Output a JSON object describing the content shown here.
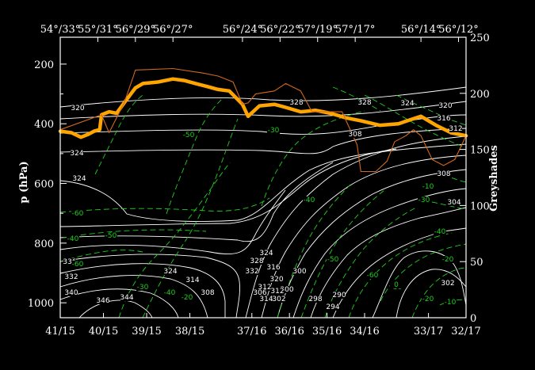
{
  "chart_data": {
    "type": "line",
    "title": "",
    "top_axis": {
      "labels": [
        "54°/33°",
        "55°/31°",
        "56°/29°",
        "56°/27°",
        "56°/24°",
        "56°/22°",
        "57°/19°",
        "57°/17°",
        "56°/14°",
        "56°/12°"
      ],
      "positions": [
        0,
        1.0,
        2.0,
        3.0,
        4.85,
        5.85,
        6.85,
        7.85,
        9.6,
        10.6
      ]
    },
    "x_axis": {
      "label": "",
      "ticks": [
        "41/15",
        "40/15",
        "39/15",
        "38/15",
        "37/16",
        "36/16",
        "35/16",
        "34/16",
        "33/17",
        "32/17"
      ],
      "positions": [
        0,
        1.15,
        2.3,
        3.45,
        5.1,
        6.1,
        7.1,
        8.1,
        9.8,
        10.8
      ],
      "range": [
        0,
        10.8
      ]
    },
    "y_axis": {
      "label": "p (hPa)",
      "scale": "linear",
      "inverted": true,
      "range": [
        110,
        1050
      ],
      "ticks": [
        200,
        400,
        600,
        800,
        1000
      ]
    },
    "y2_axis": {
      "label": "Greyshades",
      "range": [
        0,
        250
      ],
      "ticks": [
        0,
        50,
        100,
        150,
        200,
        250
      ]
    },
    "series": [
      {
        "role": "thick-orange-line",
        "color": "#ffa500",
        "points": [
          [
            0,
            425
          ],
          [
            0.3,
            430
          ],
          [
            0.55,
            445
          ],
          [
            0.75,
            435
          ],
          [
            0.9,
            425
          ],
          [
            1.05,
            420
          ],
          [
            1.1,
            370
          ],
          [
            1.3,
            360
          ],
          [
            1.5,
            365
          ],
          [
            1.7,
            330
          ],
          [
            2.0,
            280
          ],
          [
            2.2,
            265
          ],
          [
            2.6,
            260
          ],
          [
            3.0,
            250
          ],
          [
            3.3,
            255
          ],
          [
            3.6,
            265
          ],
          [
            3.9,
            275
          ],
          [
            4.2,
            285
          ],
          [
            4.5,
            290
          ],
          [
            4.85,
            335
          ],
          [
            5.0,
            375
          ],
          [
            5.3,
            340
          ],
          [
            5.7,
            335
          ],
          [
            6.0,
            345
          ],
          [
            6.4,
            360
          ],
          [
            6.8,
            355
          ],
          [
            7.2,
            365
          ],
          [
            7.6,
            380
          ],
          [
            8.0,
            390
          ],
          [
            8.5,
            405
          ],
          [
            9.0,
            400
          ],
          [
            9.35,
            385
          ],
          [
            9.6,
            375
          ],
          [
            10.0,
            405
          ],
          [
            10.4,
            430
          ],
          [
            10.8,
            440
          ]
        ]
      },
      {
        "role": "thin-orange-line",
        "color": "#d2691e",
        "points": [
          [
            0,
            420
          ],
          [
            1.1,
            370
          ],
          [
            1.3,
            430
          ],
          [
            1.7,
            330
          ],
          [
            1.95,
            240
          ],
          [
            2.0,
            220
          ],
          [
            3.0,
            215
          ],
          [
            3.8,
            230
          ],
          [
            4.2,
            240
          ],
          [
            4.6,
            260
          ],
          [
            4.85,
            335
          ],
          [
            5.0,
            330
          ],
          [
            5.2,
            300
          ],
          [
            5.7,
            290
          ],
          [
            6.0,
            265
          ],
          [
            6.4,
            290
          ],
          [
            6.7,
            360
          ],
          [
            7.5,
            360
          ],
          [
            7.9,
            470
          ],
          [
            8.0,
            560
          ],
          [
            8.4,
            560
          ],
          [
            8.7,
            525
          ],
          [
            8.9,
            460
          ],
          [
            9.2,
            440
          ],
          [
            9.4,
            420
          ],
          [
            9.6,
            440
          ],
          [
            9.9,
            520
          ],
          [
            10.2,
            540
          ],
          [
            10.5,
            520
          ],
          [
            10.8,
            440
          ]
        ]
      }
    ],
    "contour_labels_white": [
      "320",
      "324",
      "324",
      "328",
      "328",
      "324",
      "320",
      "316",
      "312",
      "308",
      "304",
      "332",
      "328",
      "324",
      "320",
      "316",
      "312",
      "306",
      "302",
      "300",
      "300",
      "298",
      "294",
      "290",
      "308",
      "302",
      "336",
      "332",
      "346",
      "344",
      "340",
      "324",
      "314",
      "308",
      "314",
      "312"
    ],
    "contour_labels_green": [
      "-50",
      "-60",
      "-40",
      "-50",
      "-60",
      "-30",
      "-40",
      "-20",
      "-30",
      "-40",
      "-50",
      "-60",
      "-30",
      "-20",
      "-20",
      "-40",
      "-30",
      "-10",
      "0",
      "-10"
    ],
    "grid": false
  }
}
